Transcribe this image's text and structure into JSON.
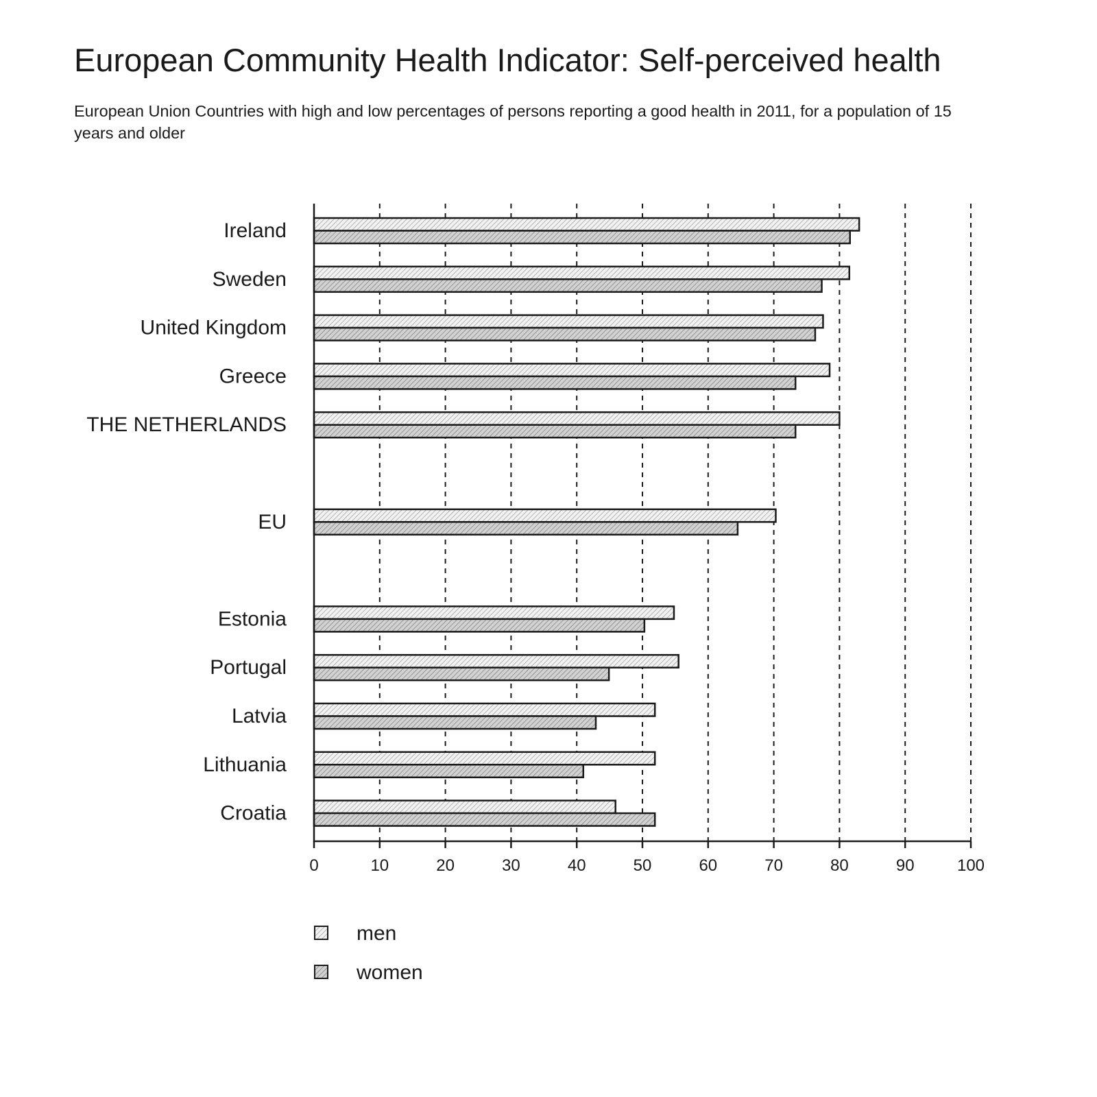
{
  "chart_data": {
    "type": "bar",
    "orientation": "horizontal",
    "title": "European Community Health Indicator: Self-perceived health",
    "subtitle": "European Union Countries with high and low percentages of persons reporting a good health in 2011, for a population of 15 years and older",
    "xlabel": "",
    "ylabel": "",
    "xlim": [
      0,
      100
    ],
    "xticks": [
      0,
      10,
      20,
      30,
      40,
      50,
      60,
      70,
      80,
      90,
      100
    ],
    "grid": "vertical dashed",
    "legend_position": "bottom-left",
    "categories": [
      "Ireland",
      "Sweden",
      "United Kingdom",
      "Greece",
      "THE NETHERLANDS",
      "",
      "EU",
      "",
      "Estonia",
      "Portugal",
      "Latvia",
      "Lithuania",
      "Croatia"
    ],
    "series": [
      {
        "name": "men",
        "values": [
          83,
          81.5,
          77.5,
          78.5,
          80,
          null,
          70.3,
          null,
          54.8,
          55.5,
          51.9,
          51.9,
          45.9
        ]
      },
      {
        "name": "women",
        "values": [
          81.6,
          77.3,
          76.3,
          73.3,
          73.3,
          null,
          64.5,
          null,
          50.3,
          44.9,
          42.9,
          41,
          51.9
        ]
      }
    ]
  },
  "colors": {
    "men_fill": "#f2f2f2",
    "women_fill": "#d2d2d2",
    "hatch": "#8a8a8a",
    "outline": "#1a1a1a"
  }
}
